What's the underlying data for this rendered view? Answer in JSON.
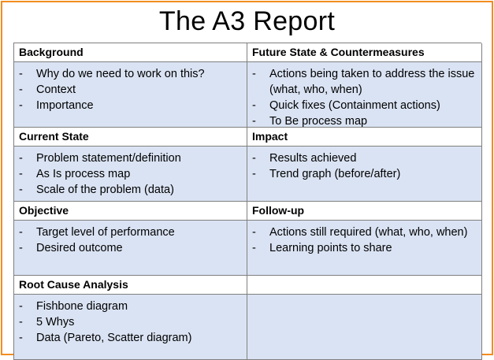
{
  "title": "The A3 Report",
  "sections": {
    "background": {
      "heading": "Background",
      "items": [
        "Why do we need to work on this?",
        "Context",
        "Importance"
      ]
    },
    "future_state": {
      "heading": "Future State & Countermeasures",
      "items": [
        "Actions being taken to address the issue (what, who, when)",
        "Quick fixes (Containment actions)",
        "To Be process map"
      ]
    },
    "current_state": {
      "heading": "Current State",
      "items": [
        "Problem statement/definition",
        "As Is process map",
        "Scale of the problem (data)"
      ]
    },
    "impact": {
      "heading": "Impact",
      "items": [
        "Results achieved",
        "Trend graph (before/after)"
      ]
    },
    "objective": {
      "heading": "Objective",
      "items": [
        "Target level of performance",
        "Desired outcome"
      ]
    },
    "follow_up": {
      "heading": "Follow-up",
      "items": [
        "Actions still required (what, who, when)",
        "Learning points to share"
      ]
    },
    "root_cause": {
      "heading": "Root Cause Analysis",
      "items": [
        "Fishbone diagram",
        "5 Whys",
        "Data (Pareto, Scatter diagram)"
      ]
    }
  },
  "bullet_glyph": "-"
}
